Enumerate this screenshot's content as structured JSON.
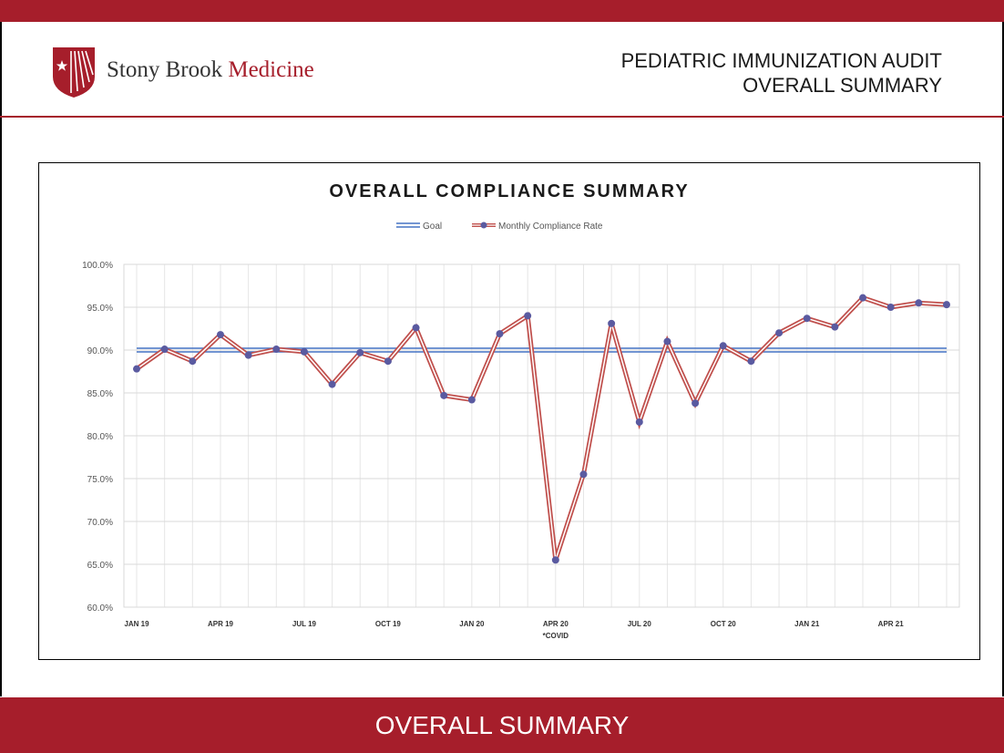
{
  "brand": {
    "name_plain": "Stony Brook ",
    "name_accent": "Medicine"
  },
  "header": {
    "line1": "PEDIATRIC IMMUNIZATION AUDIT",
    "line2": "OVERALL SUMMARY"
  },
  "footer": {
    "label": "OVERALL SUMMARY"
  },
  "colors": {
    "brand_red": "#a61e2b",
    "goal_line": "#4472c4",
    "compliance_line": "#c0504d",
    "marker": "#5a5aa0"
  },
  "chart_data": {
    "type": "line",
    "title": "OVERALL COMPLIANCE SUMMARY",
    "legend_position": "top-center",
    "grid": true,
    "ylim": [
      60,
      100
    ],
    "y_ticks": [
      "60.0%",
      "65.0%",
      "70.0%",
      "75.0%",
      "80.0%",
      "85.0%",
      "90.0%",
      "95.0%",
      "100.0%"
    ],
    "x_tick_labels": [
      {
        "index": 0,
        "label": "JAN 19"
      },
      {
        "index": 3,
        "label": "APR 19"
      },
      {
        "index": 6,
        "label": "JUL 19"
      },
      {
        "index": 9,
        "label": "OCT 19"
      },
      {
        "index": 12,
        "label": "JAN 20"
      },
      {
        "index": 15,
        "label": "APR 20"
      },
      {
        "index": 18,
        "label": "JUL 20"
      },
      {
        "index": 21,
        "label": "OCT 20"
      },
      {
        "index": 24,
        "label": "JAN 21"
      },
      {
        "index": 27,
        "label": "APR 21"
      }
    ],
    "annotation": {
      "index": 15,
      "text": "*COVID"
    },
    "series": [
      {
        "name": "Goal",
        "values": [
          90,
          90,
          90,
          90,
          90,
          90,
          90,
          90,
          90,
          90,
          90,
          90,
          90,
          90,
          90,
          90,
          90,
          90,
          90,
          90,
          90,
          90,
          90,
          90,
          90,
          90,
          90,
          90,
          90,
          90
        ]
      },
      {
        "name": "Monthly Compliance Rate",
        "values": [
          87.8,
          90.1,
          88.7,
          91.8,
          89.4,
          90.1,
          89.8,
          86.0,
          89.7,
          88.7,
          92.6,
          84.7,
          84.2,
          91.9,
          94.0,
          65.5,
          75.5,
          93.1,
          81.6,
          91.0,
          83.8,
          90.5,
          88.7,
          92.0,
          93.7,
          92.7,
          96.1,
          95.0,
          95.5,
          95.3
        ]
      }
    ]
  }
}
